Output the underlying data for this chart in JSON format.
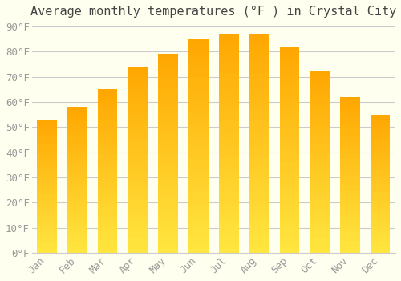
{
  "title": "Average monthly temperatures (°F ) in Crystal City",
  "months": [
    "Jan",
    "Feb",
    "Mar",
    "Apr",
    "May",
    "Jun",
    "Jul",
    "Aug",
    "Sep",
    "Oct",
    "Nov",
    "Dec"
  ],
  "values": [
    53,
    58,
    65,
    74,
    79,
    85,
    87,
    87,
    82,
    72,
    62,
    55
  ],
  "bar_color_main": "#FFA500",
  "bar_color_gradient_light": "#FFD060",
  "background_color": "#FFFFF0",
  "grid_color": "#CCCCCC",
  "text_color": "#999999",
  "ylim": [
    0,
    90
  ],
  "yticks": [
    0,
    10,
    20,
    30,
    40,
    50,
    60,
    70,
    80,
    90
  ],
  "ytick_labels": [
    "0°F",
    "10°F",
    "20°F",
    "30°F",
    "40°F",
    "50°F",
    "60°F",
    "70°F",
    "80°F",
    "90°F"
  ],
  "title_fontsize": 11,
  "tick_fontsize": 9,
  "figsize": [
    5.0,
    3.5
  ],
  "dpi": 100
}
